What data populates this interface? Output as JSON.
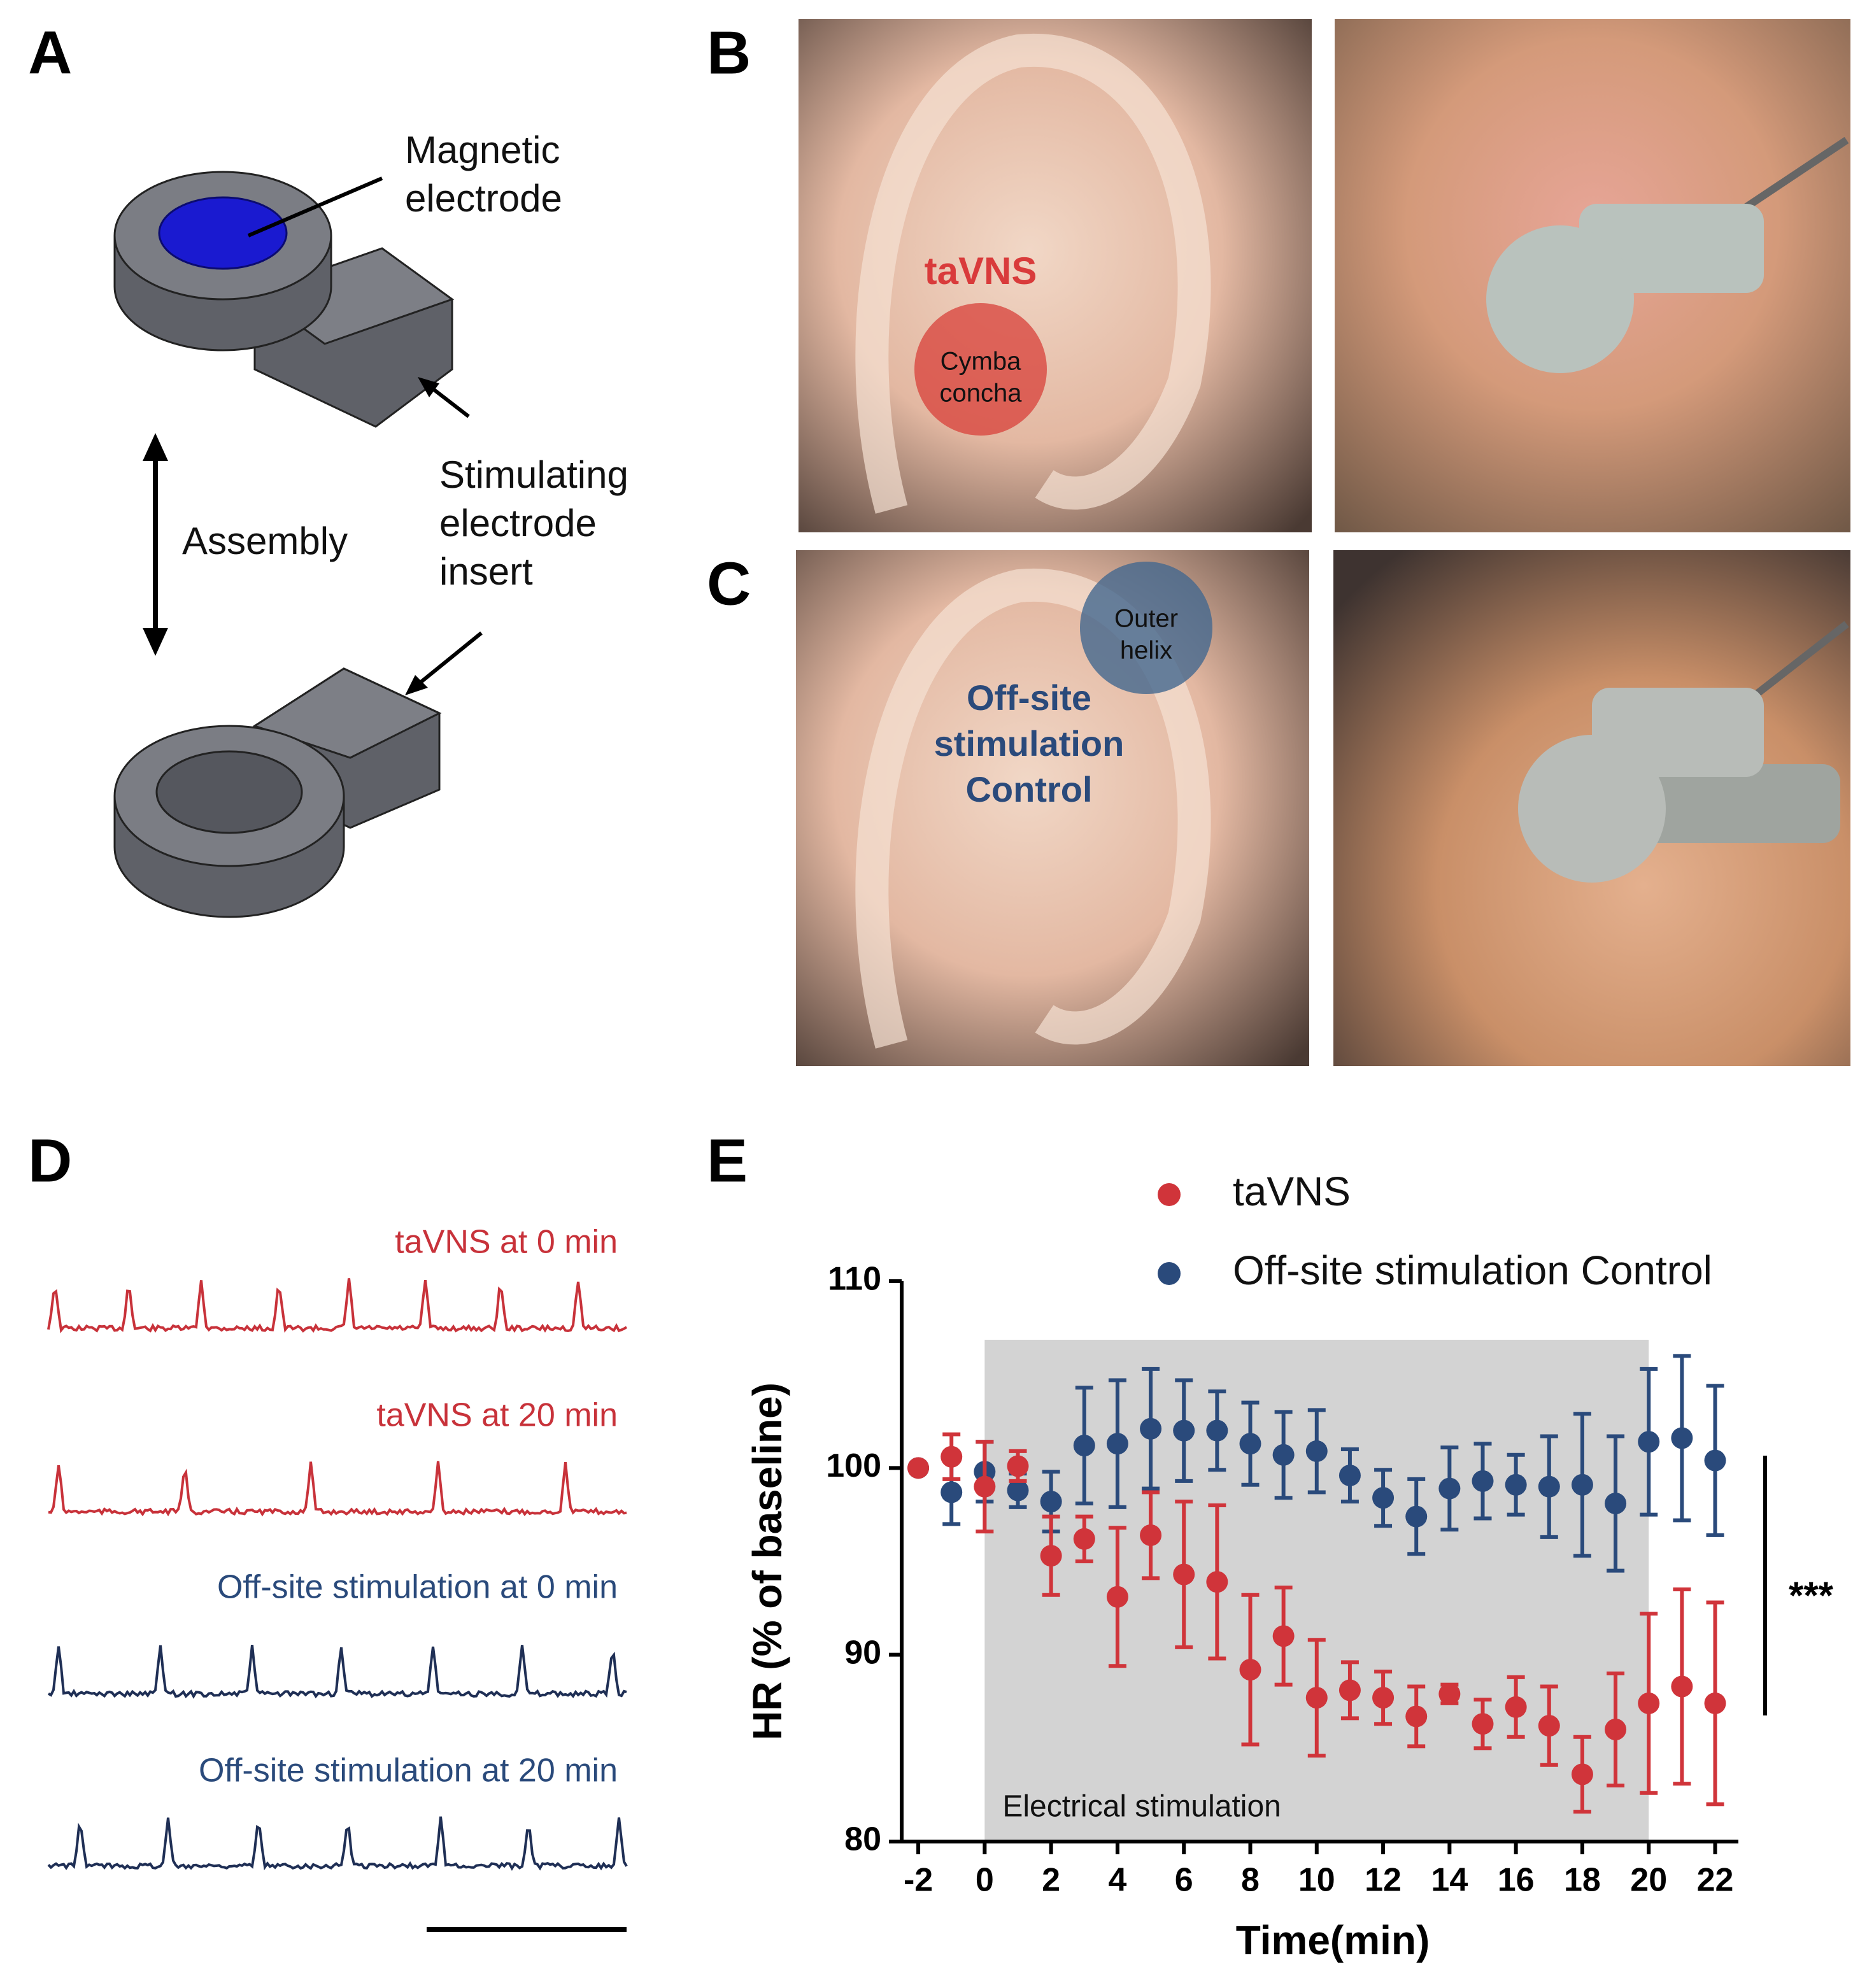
{
  "panel_labels": [
    "A",
    "B",
    "C",
    "D",
    "E"
  ],
  "panel_a": {
    "magnetic_electrode": [
      "Magnetic",
      "electrode"
    ],
    "stimulating_insert": [
      "Stimulating",
      "electrode",
      "insert"
    ],
    "assembly": "Assembly"
  },
  "panel_b": {
    "label": "taVNS",
    "site": [
      "Cymba",
      "concha"
    ]
  },
  "panel_c": {
    "label": [
      "Off-site",
      "stimulation",
      "Control"
    ],
    "site": [
      "Outer",
      "helix"
    ]
  },
  "panel_d": {
    "traces": [
      {
        "name": "taVNS at 0 min",
        "color": "#c8323a"
      },
      {
        "name": "taVNS at 20 min",
        "color": "#c8323a"
      },
      {
        "name": "Off-site stimulation at 0 min",
        "color": "#1f2f55"
      },
      {
        "name": "Off-site stimulation at 20 min",
        "color": "#1f2f55"
      }
    ],
    "label_colors": [
      "#c8323a",
      "#c8323a",
      "#2a4a7b",
      "#2a4a7b"
    ]
  },
  "chart_data": {
    "type": "errorbar",
    "x_label": "Time(min)",
    "y_label": "HR (% of baseline)",
    "x": [
      -2,
      -1,
      0,
      1,
      2,
      3,
      4,
      5,
      6,
      7,
      8,
      9,
      10,
      11,
      12,
      13,
      14,
      15,
      16,
      17,
      18,
      19,
      20,
      21,
      22
    ],
    "series": [
      {
        "name": "taVNS",
        "color": "#d0343a",
        "values": [
          100,
          100.6,
          99.0,
          100.1,
          95.3,
          96.2,
          93.1,
          96.4,
          94.3,
          93.9,
          89.2,
          91.0,
          87.7,
          88.1,
          87.7,
          86.7,
          87.9,
          86.3,
          87.2,
          86.2,
          83.6,
          86.0,
          87.4,
          88.3,
          87.4
        ],
        "errors": [
          0,
          1.2,
          2.4,
          0.8,
          2.1,
          1.2,
          3.7,
          2.3,
          3.9,
          4.1,
          4.0,
          2.6,
          3.1,
          1.5,
          1.4,
          1.6,
          0.5,
          1.3,
          1.6,
          2.1,
          2.0,
          3.0,
          4.8,
          5.2,
          5.4
        ]
      },
      {
        "name": "Off-site stimulation Control",
        "color": "#2a4a7b",
        "values": [
          100,
          98.7,
          99.8,
          98.8,
          98.2,
          101.2,
          101.3,
          102.1,
          102.0,
          102.0,
          101.3,
          100.7,
          100.9,
          99.6,
          98.4,
          97.4,
          98.9,
          99.3,
          99.1,
          99.0,
          99.1,
          98.1,
          101.4,
          101.6,
          100.4
        ],
        "errors": [
          0,
          1.7,
          1.6,
          0.9,
          1.6,
          3.1,
          3.4,
          3.2,
          2.7,
          2.1,
          2.2,
          2.3,
          2.2,
          1.4,
          1.5,
          2.0,
          2.2,
          2.0,
          1.6,
          2.7,
          3.8,
          3.6,
          3.9,
          4.4,
          4.0
        ]
      }
    ],
    "xlim": [
      -2.5,
      22.7
    ],
    "ylim": [
      80,
      110
    ],
    "xticks": [
      -2,
      0,
      2,
      4,
      6,
      8,
      10,
      12,
      14,
      16,
      18,
      20,
      22
    ],
    "yticks": [
      80,
      90,
      100,
      110
    ],
    "shade_x": [
      0,
      20
    ],
    "shade_label": "Electrical stimulation",
    "shade_color": "#d3d3d3",
    "significance": "***"
  }
}
